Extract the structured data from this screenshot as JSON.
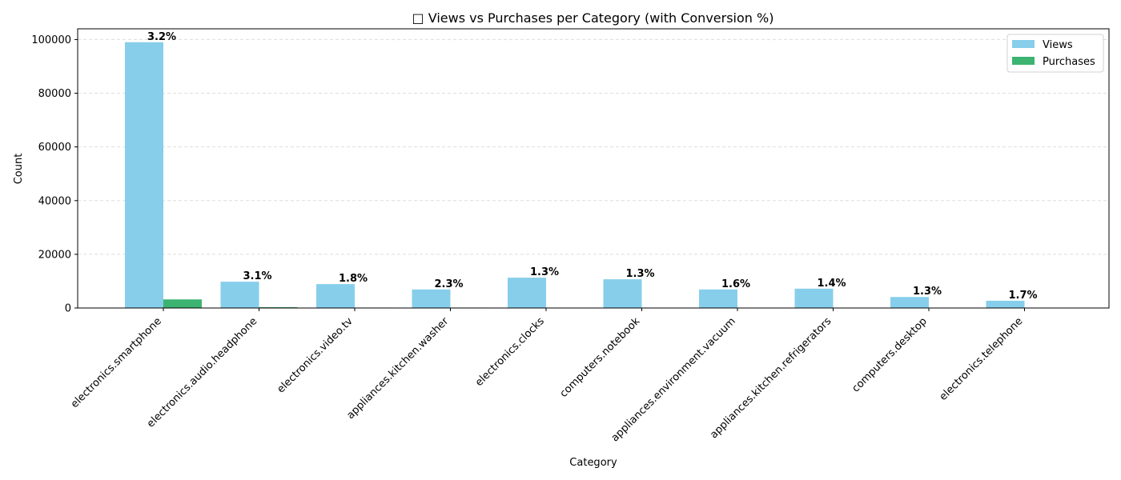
{
  "chart_data": {
    "type": "bar",
    "title": "□ Views vs Purchases per Category (with Conversion %)",
    "xlabel": "Category",
    "ylabel": "Count",
    "ylim": [
      0,
      104000
    ],
    "yticks": [
      0,
      20000,
      40000,
      60000,
      80000,
      100000
    ],
    "grid": "y, dashed",
    "legend_position": "top-right",
    "categories": [
      "electronics.smartphone",
      "electronics.audio.headphone",
      "electronics.video.tv",
      "appliances.kitchen.washer",
      "electronics.clocks",
      "computers.notebook",
      "appliances.environment.vacuum",
      "appliances.kitchen.refrigerators",
      "computers.desktop",
      "electronics.telephone"
    ],
    "series": [
      {
        "name": "Views",
        "color": "#87ceeb",
        "values": [
          99000,
          9800,
          8900,
          6900,
          11300,
          10700,
          6900,
          7200,
          4100,
          2700
        ]
      },
      {
        "name": "Purchases",
        "color": "#3cb371",
        "values": [
          3200,
          300,
          160,
          160,
          150,
          140,
          110,
          100,
          55,
          45
        ]
      }
    ],
    "conversion_labels": [
      "3.2%",
      "3.1%",
      "1.8%",
      "2.3%",
      "1.3%",
      "1.3%",
      "1.6%",
      "1.4%",
      "1.3%",
      "1.7%"
    ]
  }
}
